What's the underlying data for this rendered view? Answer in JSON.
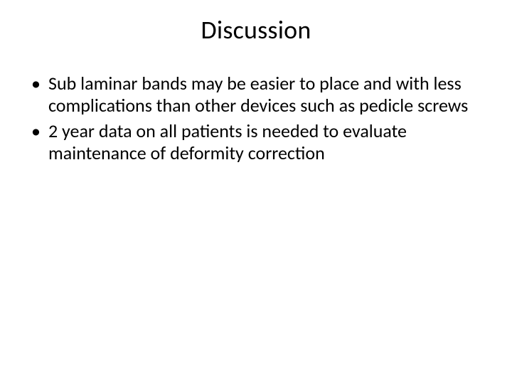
{
  "slide": {
    "title": "Discussion",
    "title_fontsize": 36,
    "body_fontsize": 26,
    "background_color": "#ffffff",
    "text_color": "#000000",
    "bullets": [
      "Sub laminar bands may be easier to place and with less complications than other devices such as pedicle screws",
      "2 year data on all patients is needed to evaluate maintenance of deformity correction"
    ]
  }
}
